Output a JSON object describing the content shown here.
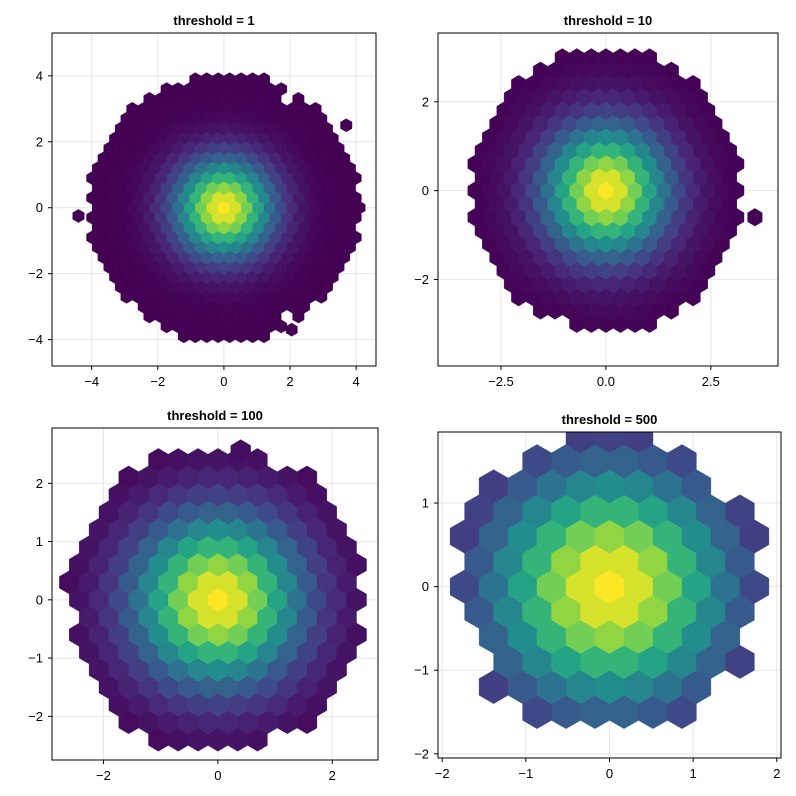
{
  "figure": {
    "background": "#ffffff",
    "frame_color": "#000000",
    "grid_color": "#e6e6e6",
    "colormap": [
      "#440154",
      "#472c7a",
      "#3b518b",
      "#2c718e",
      "#21908d",
      "#27ad81",
      "#5cc863",
      "#aadc32",
      "#fde725"
    ]
  },
  "chart_data": [
    {
      "type": "heatmap",
      "subtype": "hexbin",
      "title": "threshold = 1",
      "xlabel": "",
      "ylabel": "",
      "xlim": [
        -5.2,
        4.6
      ],
      "ylim": [
        -4.8,
        5.3
      ],
      "xticks": [
        -4,
        -2,
        0,
        2,
        4
      ],
      "yticks": [
        -4,
        -2,
        0,
        2,
        4
      ],
      "hex_size": 0.2,
      "radius": 4.1,
      "sigma": 1.0,
      "threshold": 1,
      "grid": true,
      "outliers": [
        [
          -4.4,
          -0.25
        ],
        [
          2.05,
          -3.7
        ],
        [
          2.1,
          3.3
        ],
        [
          3.7,
          2.5
        ],
        [
          4.1,
          0.0
        ]
      ],
      "holes": [
        [
          2.0,
          3.3
        ],
        [
          1.9,
          -3.3
        ]
      ]
    },
    {
      "type": "heatmap",
      "subtype": "hexbin",
      "title": "threshold = 10",
      "xlabel": "",
      "ylabel": "",
      "xlim": [
        -4.0,
        4.1
      ],
      "ylim": [
        -3.95,
        3.55
      ],
      "xticks": [
        -2.5,
        0.0,
        2.5
      ],
      "yticks": [
        -2,
        0,
        2
      ],
      "hex_size": 0.2,
      "radius": 3.2,
      "sigma": 1.0,
      "threshold": 10,
      "grid": true,
      "outliers": [
        [
          3.55,
          -0.6
        ]
      ],
      "holes": []
    },
    {
      "type": "heatmap",
      "subtype": "hexbin",
      "title": "threshold = 100",
      "xlabel": "",
      "ylabel": "",
      "xlim": [
        -2.9,
        2.8
      ],
      "ylim": [
        -2.75,
        2.95
      ],
      "xticks": [
        -2,
        0,
        2
      ],
      "yticks": [
        -2,
        -1,
        0,
        1,
        2
      ],
      "hex_size": 0.2,
      "radius": 2.6,
      "sigma": 1.0,
      "threshold": 100,
      "grid": true,
      "outliers": [
        [
          0.4,
          2.55
        ]
      ],
      "holes": []
    },
    {
      "type": "heatmap",
      "subtype": "hexbin",
      "title": "threshold = 500",
      "xlabel": "",
      "ylabel": "",
      "xlim": [
        -2.05,
        2.05
      ],
      "ylim": [
        -2.05,
        1.85
      ],
      "xticks": [
        -2,
        -1,
        0,
        1,
        2
      ],
      "yticks": [
        -2,
        -1,
        0,
        1
      ],
      "hex_size": 0.2,
      "radius": 1.82,
      "sigma": 1.0,
      "threshold": 500,
      "grid": true,
      "outliers": [],
      "holes": []
    }
  ]
}
